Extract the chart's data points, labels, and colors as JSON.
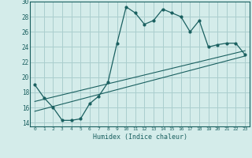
{
  "xlabel": "Humidex (Indice chaleur)",
  "bg_color": "#d4ecea",
  "grid_color": "#aacece",
  "line_color": "#1a6060",
  "xlim": [
    -0.5,
    23.5
  ],
  "ylim": [
    13.5,
    30.0
  ],
  "xticks": [
    0,
    1,
    2,
    3,
    4,
    5,
    6,
    7,
    8,
    9,
    10,
    11,
    12,
    13,
    14,
    15,
    16,
    17,
    18,
    19,
    20,
    21,
    22,
    23
  ],
  "yticks": [
    14,
    16,
    18,
    20,
    22,
    24,
    26,
    28,
    30
  ],
  "curve1_x": [
    0,
    1,
    2,
    3,
    4,
    5,
    6,
    7,
    8,
    9,
    10,
    11,
    12,
    13,
    14,
    15,
    16,
    17,
    18,
    19,
    20,
    21,
    22,
    23
  ],
  "curve1_y": [
    19.0,
    17.3,
    16.0,
    14.3,
    14.3,
    14.5,
    16.5,
    17.5,
    19.3,
    24.5,
    29.3,
    28.5,
    27.0,
    27.5,
    29.0,
    28.5,
    28.0,
    26.0,
    27.5,
    24.0,
    24.3,
    24.5,
    24.5,
    23.0
  ],
  "line2_x": [
    0,
    23
  ],
  "line2_y": [
    16.8,
    23.5
  ],
  "line3_x": [
    0,
    23
  ],
  "line3_y": [
    15.5,
    22.8
  ]
}
